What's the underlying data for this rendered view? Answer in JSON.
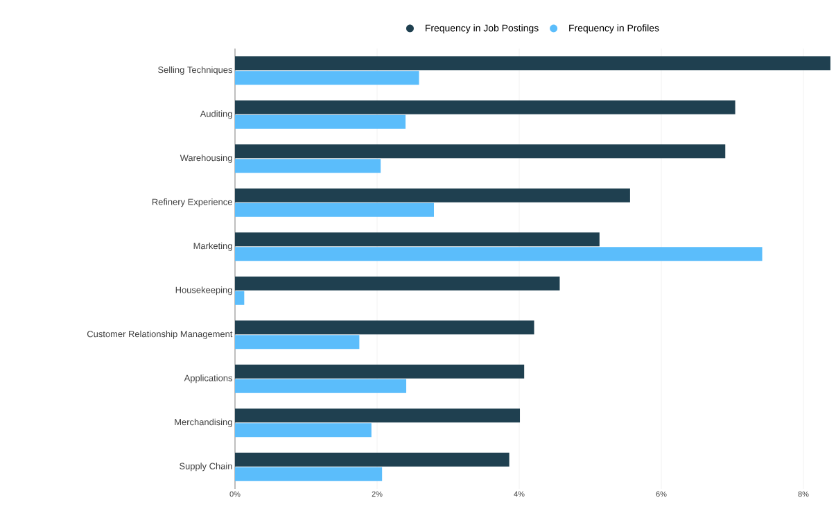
{
  "chart_data": {
    "type": "bar",
    "orientation": "horizontal",
    "categories": [
      "Selling Techniques",
      "Auditing",
      "Warehousing",
      "Refinery Experience",
      "Marketing",
      "Housekeeping",
      "Customer Relationship Management",
      "Applications",
      "Merchandising",
      "Supply Chain"
    ],
    "series": [
      {
        "name": "Frequency in Job Postings",
        "color": "#1f4050",
        "values": [
          8.38,
          7.04,
          6.9,
          5.56,
          5.13,
          4.57,
          4.21,
          4.07,
          4.01,
          3.86
        ]
      },
      {
        "name": "Frequency in Profiles",
        "color": "#5bbdfb",
        "values": [
          2.59,
          2.4,
          2.05,
          2.8,
          7.42,
          0.13,
          1.75,
          2.41,
          1.92,
          2.07
        ]
      }
    ],
    "xlim": [
      0,
      8.4
    ],
    "xticks": [
      {
        "value": 0,
        "label": "0%"
      },
      {
        "value": 2,
        "label": "2%"
      },
      {
        "value": 4,
        "label": "4%"
      },
      {
        "value": 6,
        "label": "6%"
      },
      {
        "value": 8,
        "label": "8%"
      }
    ],
    "grid": "x",
    "legend": "top",
    "marker": "circle"
  }
}
